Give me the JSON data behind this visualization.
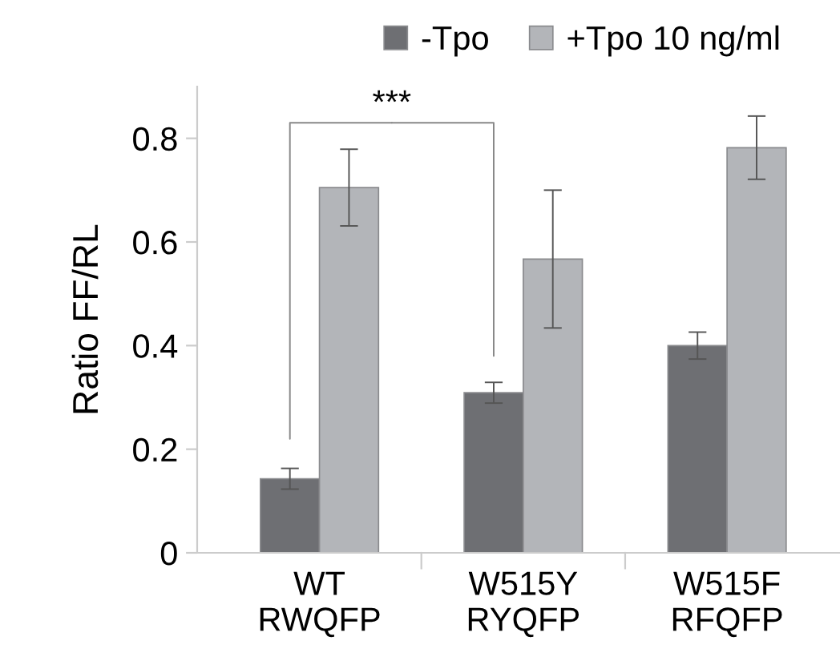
{
  "chart_data": {
    "type": "bar",
    "ylabel": "Ratio FF/RL",
    "categories": [
      "WT\nRWQFP",
      "W515Y\nRYQFP",
      "W515F\nRFQFP"
    ],
    "series": [
      {
        "name": "-Tpo",
        "color": "#6e6f73",
        "values": [
          0.143,
          0.309,
          0.4
        ],
        "errors": [
          0.02,
          0.02,
          0.026
        ]
      },
      {
        "name": "+Tpo 10 ng/ml",
        "color": "#b3b5b9",
        "values": [
          0.705,
          0.567,
          0.782
        ],
        "errors": [
          0.074,
          0.133,
          0.061
        ]
      }
    ],
    "ylim": [
      0,
      0.9
    ],
    "yticks": [
      {
        "value": 0,
        "label": "0"
      },
      0.2,
      0.4,
      0.6,
      0.8
    ],
    "annotations": [
      "***"
    ],
    "grid": false,
    "legend": "top"
  }
}
